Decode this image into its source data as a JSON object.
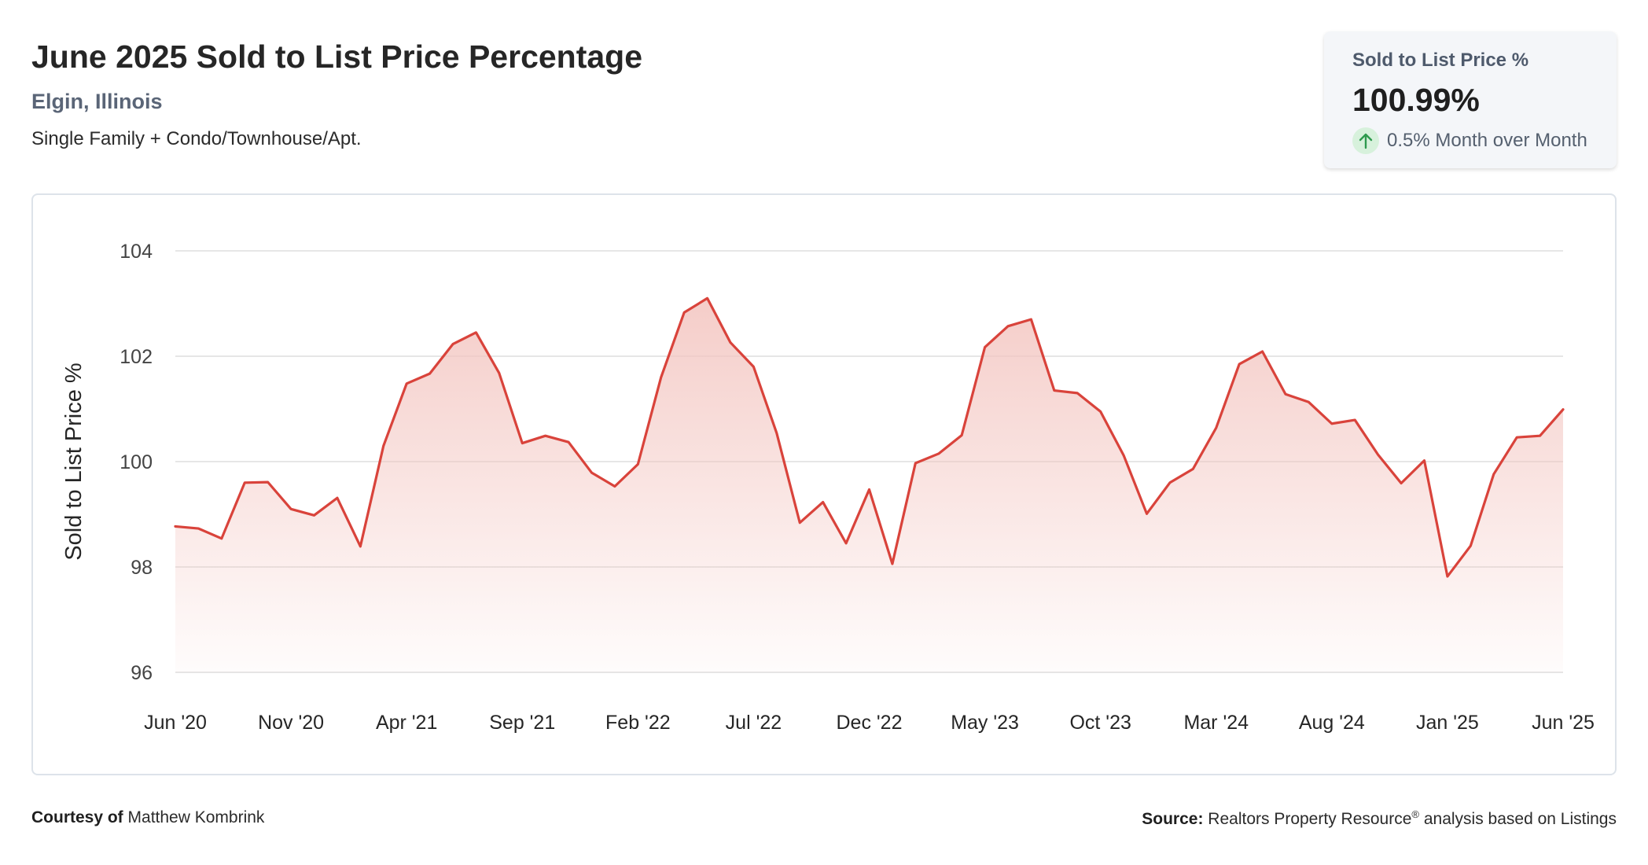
{
  "header": {
    "title": "June 2025 Sold to List Price Percentage",
    "location": "Elgin, Illinois",
    "property_types": "Single Family + Condo/Townhouse/Apt."
  },
  "kpi": {
    "label": "Sold to List Price %",
    "value": "100.99%",
    "change": "0.5% Month over Month",
    "change_direction": "up",
    "arrow_icon": "arrow-up-icon"
  },
  "footer": {
    "courtesy_label": "Courtesy of",
    "courtesy_name": "Matthew Kombrink",
    "source_label": "Source:",
    "source_text_a": "Realtors Property Resource",
    "source_sup": "®",
    "source_text_b": " analysis based on Listings"
  },
  "colors": {
    "line": "#d9433b",
    "fill_top": "#f3c4bf",
    "grid": "#dedede",
    "kpi_arrow": "#2e9a4e",
    "kpi_arrow_bg": "#d7f1dc"
  },
  "chart_data": {
    "type": "area",
    "xlabel": "",
    "ylabel": "Sold to List Price %",
    "ylim": [
      96,
      104
    ],
    "yticks": [
      96,
      98,
      100,
      102,
      104
    ],
    "grid": true,
    "x_tick_labels": [
      "Jun '20",
      "Nov '20",
      "Apr '21",
      "Sep '21",
      "Feb '22",
      "Jul '22",
      "Dec '22",
      "May '23",
      "Oct '23",
      "Mar '24",
      "Aug '24",
      "Jan '25",
      "Jun '25"
    ],
    "x": [
      "Jun '20",
      "Jul '20",
      "Aug '20",
      "Sep '20",
      "Oct '20",
      "Nov '20",
      "Dec '20",
      "Jan '21",
      "Feb '21",
      "Mar '21",
      "Apr '21",
      "May '21",
      "Jun '21",
      "Jul '21",
      "Aug '21",
      "Sep '21",
      "Oct '21",
      "Nov '21",
      "Dec '21",
      "Jan '22",
      "Feb '22",
      "Mar '22",
      "Apr '22",
      "May '22",
      "Jun '22",
      "Jul '22",
      "Aug '22",
      "Sep '22",
      "Oct '22",
      "Nov '22",
      "Dec '22",
      "Jan '23",
      "Feb '23",
      "Mar '23",
      "Apr '23",
      "May '23",
      "Jun '23",
      "Jul '23",
      "Aug '23",
      "Sep '23",
      "Oct '23",
      "Nov '23",
      "Dec '23",
      "Jan '24",
      "Feb '24",
      "Mar '24",
      "Apr '24",
      "May '24",
      "Jun '24",
      "Jul '24",
      "Aug '24",
      "Sep '24",
      "Oct '24",
      "Nov '24",
      "Dec '24",
      "Jan '25",
      "Feb '25",
      "Mar '25",
      "Apr '25",
      "May '25",
      "Jun '25"
    ],
    "values": [
      98.77,
      98.73,
      98.54,
      99.6,
      99.61,
      99.1,
      98.98,
      99.31,
      98.39,
      100.3,
      101.48,
      101.67,
      102.23,
      102.45,
      101.68,
      100.35,
      100.49,
      100.37,
      99.79,
      99.53,
      99.95,
      101.6,
      102.83,
      103.1,
      102.26,
      101.8,
      100.54,
      98.84,
      99.23,
      98.45,
      99.47,
      98.06,
      99.97,
      100.15,
      100.5,
      102.17,
      102.57,
      102.7,
      101.35,
      101.3,
      100.95,
      100.12,
      99.01,
      99.6,
      99.86,
      100.64,
      101.85,
      102.09,
      101.28,
      101.13,
      100.72,
      100.79,
      100.13,
      99.59,
      100.02,
      97.82,
      98.4,
      99.76,
      100.46,
      100.49,
      100.99
    ]
  }
}
